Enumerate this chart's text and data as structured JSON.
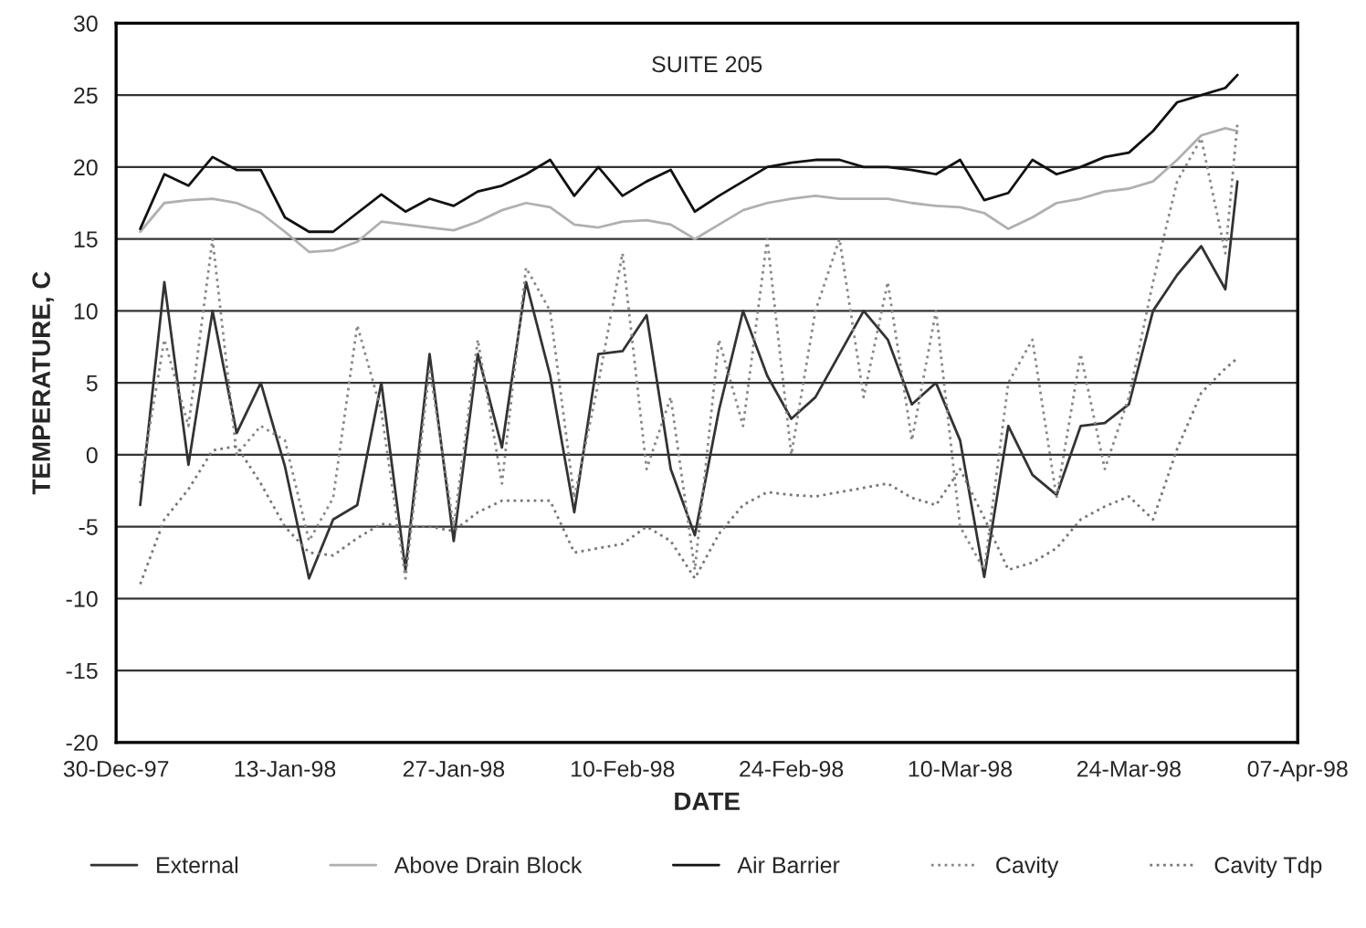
{
  "chart_data": {
    "type": "line",
    "title": "SUITE 205",
    "xlabel": "DATE",
    "ylabel": "TEMPERATURE, C",
    "x": [
      "1998-01-01",
      "1998-01-03",
      "1998-01-05",
      "1998-01-07",
      "1998-01-09",
      "1998-01-11",
      "1998-01-13",
      "1998-01-15",
      "1998-01-17",
      "1998-01-19",
      "1998-01-21",
      "1998-01-23",
      "1998-01-25",
      "1998-01-27",
      "1998-01-29",
      "1998-01-31",
      "1998-02-02",
      "1998-02-04",
      "1998-02-06",
      "1998-02-08",
      "1998-02-10",
      "1998-02-12",
      "1998-02-14",
      "1998-02-16",
      "1998-02-18",
      "1998-02-20",
      "1998-02-22",
      "1998-02-24",
      "1998-02-26",
      "1998-02-28",
      "1998-03-02",
      "1998-03-04",
      "1998-03-06",
      "1998-03-08",
      "1998-03-10",
      "1998-03-12",
      "1998-03-14",
      "1998-03-16",
      "1998-03-18",
      "1998-03-20",
      "1998-03-22",
      "1998-03-24",
      "1998-03-26",
      "1998-03-28",
      "1998-03-30",
      "1998-04-01",
      "1998-04-02"
    ],
    "series": [
      {
        "name": "External",
        "color": "#333333",
        "line_style": "solid",
        "values": [
          -3.5,
          12,
          -0.7,
          10,
          1.5,
          5,
          -0.8,
          -8.6,
          -4.5,
          -3.5,
          5,
          -8,
          7,
          -6,
          7,
          0.5,
          12,
          5.5,
          -4,
          7,
          7.2,
          9.7,
          -1,
          -5.6,
          3.1,
          10,
          5.5,
          2.5,
          4,
          7,
          10,
          8,
          3.5,
          5,
          1,
          -8.5,
          2,
          -1.4,
          -2.8,
          2,
          2.2,
          3.5,
          10,
          12.5,
          14.5,
          11.5,
          19
        ]
      },
      {
        "name": "Above Drain Block",
        "color": "#b0b0b0",
        "line_style": "solid",
        "values": [
          15.5,
          17.5,
          17.7,
          17.8,
          17.5,
          16.8,
          15.5,
          14.1,
          14.2,
          14.8,
          16.2,
          16,
          15.8,
          15.6,
          16.2,
          17,
          17.5,
          17.2,
          16,
          15.8,
          16.2,
          16.3,
          16,
          15,
          16,
          17,
          17.5,
          17.8,
          18,
          17.8,
          17.8,
          17.8,
          17.5,
          17.3,
          17.2,
          16.8,
          15.7,
          16.5,
          17.5,
          17.8,
          18.3,
          18.5,
          19,
          20.5,
          22.2,
          22.7,
          22.5
        ]
      },
      {
        "name": "Air Barrier",
        "color": "#111111",
        "line_style": "solid",
        "values": [
          15.7,
          19.5,
          18.7,
          20.7,
          19.8,
          19.8,
          16.5,
          15.5,
          15.5,
          16.8,
          18.1,
          16.9,
          17.8,
          17.3,
          18.3,
          18.7,
          19.5,
          20.5,
          18,
          20,
          18,
          19,
          19.8,
          16.9,
          18,
          19,
          20,
          20.3,
          20.5,
          20.5,
          20,
          20,
          19.8,
          19.5,
          20.5,
          17.7,
          18.2,
          20.5,
          19.5,
          20,
          20.7,
          21,
          22.5,
          24.5,
          25,
          25.5,
          26.4
        ]
      },
      {
        "name": "Cavity",
        "color": "#888888",
        "line_style": "dotted",
        "values": [
          -2,
          8,
          2,
          15,
          0,
          2,
          1,
          -6,
          -3,
          9,
          3,
          -8.6,
          6,
          -5,
          8,
          -2,
          13,
          10,
          -3,
          5,
          14,
          -1,
          4,
          -8,
          8,
          2,
          15,
          0,
          10,
          15,
          4,
          12,
          1,
          10,
          -5,
          -8,
          5,
          8,
          -3,
          7,
          -1,
          4,
          12,
          19,
          22,
          14,
          23
        ]
      },
      {
        "name": "Cavity Tdp",
        "color": "#777777",
        "line_style": "dotted",
        "values": [
          -9,
          -4.5,
          -2.4,
          0.3,
          0.6,
          -2,
          -5,
          -6.8,
          -7,
          -5.8,
          -4.8,
          -5,
          -5,
          -5.3,
          -4,
          -3.2,
          -3.2,
          -3.2,
          -6.8,
          -6.5,
          -6.2,
          -5,
          -6,
          -8.6,
          -5.5,
          -3.5,
          -2.6,
          -2.8,
          -2.9,
          -2.6,
          -2.3,
          -2,
          -3,
          -3.5,
          -1,
          -4.4,
          -8,
          -7.5,
          -6.5,
          -4.5,
          -3.6,
          -2.9,
          -4.5,
          0.4,
          4.3,
          6,
          6.7
        ]
      }
    ],
    "xlim": [
      "1997-12-30",
      "1998-04-07"
    ],
    "xticks": [
      {
        "value": "1997-12-30",
        "label": "30-Dec-97"
      },
      {
        "value": "1998-01-13",
        "label": "13-Jan-98"
      },
      {
        "value": "1998-01-27",
        "label": "27-Jan-98"
      },
      {
        "value": "1998-02-10",
        "label": "10-Feb-98"
      },
      {
        "value": "1998-02-24",
        "label": "24-Feb-98"
      },
      {
        "value": "1998-03-10",
        "label": "10-Mar-98"
      },
      {
        "value": "1998-03-24",
        "label": "24-Mar-98"
      },
      {
        "value": "1998-04-07",
        "label": "07-Apr-98"
      }
    ],
    "ylim": [
      -20,
      30
    ],
    "yticks": [
      -20,
      -15,
      -10,
      -5,
      0,
      5,
      10,
      15,
      20,
      25,
      30
    ],
    "grid": "y",
    "legend": "bottom"
  }
}
